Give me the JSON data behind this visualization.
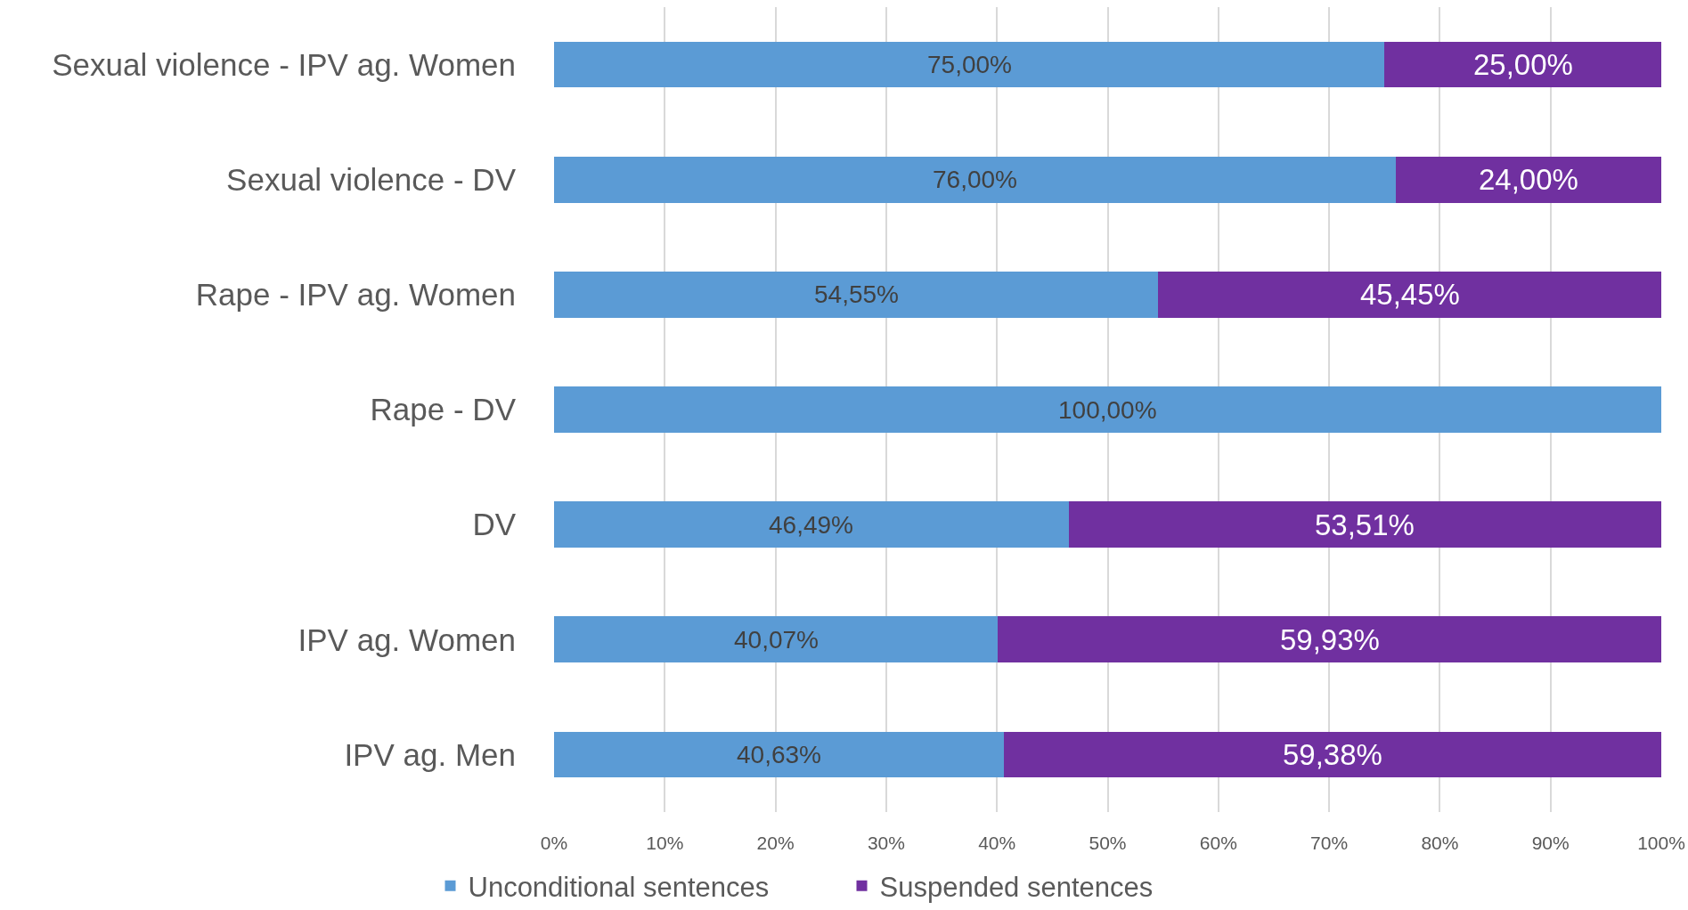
{
  "chart_data": {
    "type": "bar",
    "orientation": "horizontal",
    "stacked": true,
    "categories": [
      "Sexual violence - IPV ag. Women",
      "Sexual violence - DV",
      "Rape - IPV ag. Women",
      "Rape - DV",
      "DV",
      "IPV ag. Women",
      "IPV ag. Men"
    ],
    "series": [
      {
        "name": "Unconditional sentences",
        "color": "#5b9bd5",
        "values": [
          75.0,
          76.0,
          54.55,
          100.0,
          46.49,
          40.07,
          40.63
        ],
        "value_labels": [
          "75,00%",
          "76,00%",
          "54,55%",
          "100,00%",
          "46,49%",
          "40,07%",
          "40,63%"
        ]
      },
      {
        "name": "Suspended sentences",
        "color": "#7030a0",
        "values": [
          25.0,
          24.0,
          45.45,
          0.0,
          53.51,
          59.93,
          59.38
        ],
        "value_labels": [
          "25,00%",
          "24,00%",
          "45,45%",
          null,
          "53,51%",
          "59,93%",
          "59,38%"
        ]
      }
    ],
    "xlim": [
      0,
      100
    ],
    "xticks": [
      {
        "value": 0,
        "label": "0%"
      },
      {
        "value": 10,
        "label": "10%"
      },
      {
        "value": 20,
        "label": "20%"
      },
      {
        "value": 30,
        "label": "30%"
      },
      {
        "value": 40,
        "label": "40%"
      },
      {
        "value": 50,
        "label": "50%"
      },
      {
        "value": 60,
        "label": "60%"
      },
      {
        "value": 70,
        "label": "70%"
      },
      {
        "value": 80,
        "label": "80%"
      },
      {
        "value": 90,
        "label": "90%"
      },
      {
        "value": 100,
        "label": "100%"
      }
    ],
    "grid": "x",
    "legend": "bottom"
  }
}
